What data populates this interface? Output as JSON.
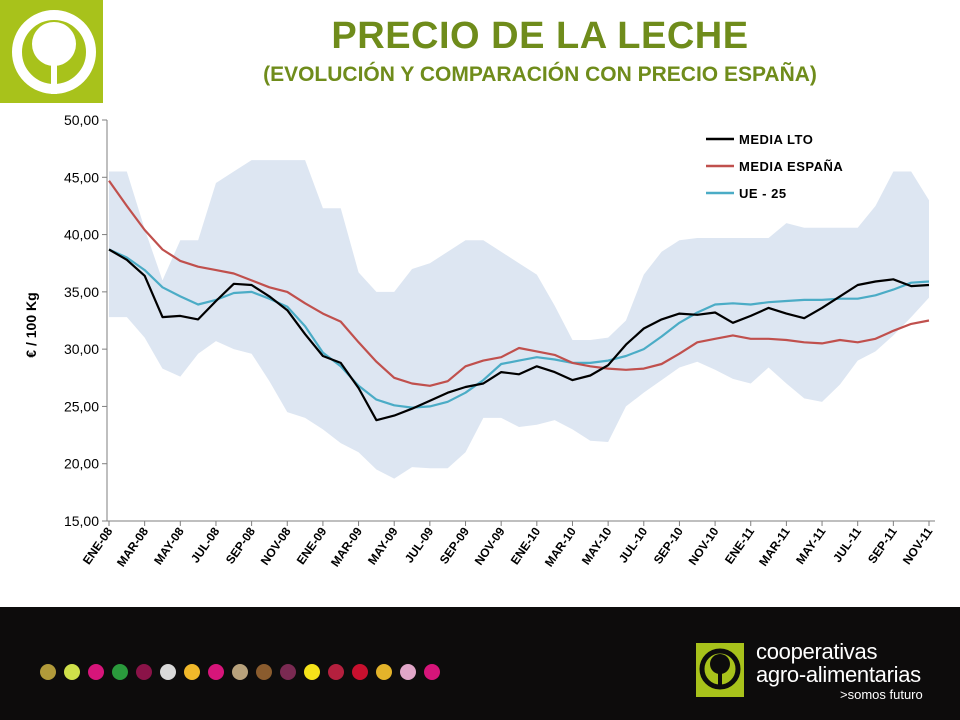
{
  "header": {
    "title": "PRECIO DE LA LECHE",
    "subtitle": "(EVOLUCIÓN Y COMPARACIÓN CON PRECIO ESPAÑA)"
  },
  "colors": {
    "accent": "#a8c21b",
    "title": "#6f8c1b",
    "band": "#dde6f2",
    "media_lto": "#000000",
    "media_espana": "#c0504d",
    "ue25": "#4bacc6",
    "footer": "#0d0c0c"
  },
  "footer": {
    "brand_line1": "cooperativas",
    "brand_line2": "agro-alimentarias",
    "brand_tagline": ">somos futuro",
    "dot_colors": [
      "#b19a3a",
      "#cfe04a",
      "#d6157a",
      "#2a9a3c",
      "#8a1348",
      "#d9d9d9",
      "#f0b82a",
      "#d6157a",
      "#b8a27c",
      "#8a5c2e",
      "#7a2a52",
      "#f5e31a",
      "#b4203e",
      "#c8102e",
      "#e3b32a",
      "#e0a6c8",
      "#d6157a"
    ]
  },
  "chart_data": {
    "type": "line",
    "ylabel": "€ / 100 Kg",
    "xlabel": "",
    "ylim": [
      15,
      50
    ],
    "yticks": [
      "15,00",
      "20,00",
      "25,00",
      "30,00",
      "35,00",
      "40,00",
      "45,00",
      "50,00"
    ],
    "grid": false,
    "legend_position": "top-right",
    "x": [
      "ENE-08",
      "FEB-08",
      "MAR-08",
      "ABR-08",
      "MAY-08",
      "JUN-08",
      "JUL-08",
      "AGO-08",
      "SEP-08",
      "OCT-08",
      "NOV-08",
      "DIC-08",
      "ENE-09",
      "FEB-09",
      "MAR-09",
      "ABR-09",
      "MAY-09",
      "JUN-09",
      "JUL-09",
      "AGO-09",
      "SEP-09",
      "OCT-09",
      "NOV-09",
      "DIC-09",
      "ENE-10",
      "FEB-10",
      "MAR-10",
      "ABR-10",
      "MAY-10",
      "JUN-10",
      "JUL-10",
      "AGO-10",
      "SEP-10",
      "OCT-10",
      "NOV-10",
      "DIC-10",
      "ENE-11",
      "FEB-11",
      "MAR-11",
      "ABR-11",
      "MAY-11",
      "JUN-11",
      "JUL-11",
      "AGO-11",
      "SEP-11",
      "OCT-11",
      "NOV-11"
    ],
    "x_tick_labels": [
      "ENE-08",
      "MAR-08",
      "MAY-08",
      "JUL-08",
      "SEP-08",
      "NOV-08",
      "ENE-09",
      "MAR-09",
      "MAY-09",
      "JUL-09",
      "SEP-09",
      "NOV-09",
      "ENE-10",
      "MAR-10",
      "MAY-10",
      "JUL-10",
      "SEP-10",
      "NOV-10",
      "ENE-11",
      "MAR-11",
      "MAY-11",
      "JUL-11",
      "SEP-11",
      "NOV-11"
    ],
    "band": {
      "upper": [
        45.5,
        45.5,
        40.5,
        36.0,
        39.5,
        39.5,
        44.5,
        45.5,
        46.5,
        46.5,
        46.5,
        46.5,
        42.3,
        42.3,
        36.7,
        35.0,
        35.0,
        37.0,
        37.5,
        38.5,
        39.5,
        39.5,
        38.5,
        37.5,
        36.5,
        33.8,
        30.8,
        30.8,
        31.0,
        32.5,
        36.5,
        38.5,
        39.5,
        39.7,
        39.7,
        39.7,
        39.7,
        39.7,
        41.0,
        40.6,
        40.6,
        40.6,
        40.6,
        42.5,
        45.5,
        45.5,
        43.0
      ],
      "lower": [
        32.8,
        32.8,
        31.0,
        28.3,
        27.6,
        29.6,
        30.7,
        30.0,
        29.6,
        27.2,
        24.5,
        24.0,
        23.0,
        21.8,
        21.0,
        19.5,
        18.7,
        19.7,
        19.6,
        19.6,
        21.0,
        24.0,
        24.0,
        23.2,
        23.4,
        23.8,
        23.0,
        22.0,
        21.9,
        25.0,
        26.2,
        27.3,
        28.4,
        28.9,
        28.2,
        27.4,
        27.0,
        28.4,
        27.0,
        25.7,
        25.4,
        26.9,
        29.0,
        29.8,
        31.2,
        32.8,
        34.5
      ]
    },
    "series": [
      {
        "name": "MEDIA LTO",
        "values": [
          38.7,
          37.8,
          36.4,
          32.8,
          32.9,
          32.6,
          34.2,
          35.7,
          35.6,
          34.6,
          33.4,
          31.3,
          29.4,
          28.8,
          26.6,
          23.8,
          24.2,
          24.8,
          25.5,
          26.2,
          26.7,
          27.0,
          28.0,
          27.8,
          28.5,
          28.0,
          27.3,
          27.7,
          28.6,
          30.4,
          31.8,
          32.6,
          33.1,
          33.0,
          33.2,
          32.3,
          32.9,
          33.6,
          33.1,
          32.7,
          33.6,
          34.6,
          35.6,
          35.9,
          36.1,
          35.5,
          35.6
        ]
      },
      {
        "name": "MEDIA ESPAÑA",
        "values": [
          44.7,
          42.5,
          40.4,
          38.7,
          37.7,
          37.2,
          36.9,
          36.6,
          36.0,
          35.4,
          35.0,
          34.0,
          33.1,
          32.4,
          30.6,
          28.9,
          27.5,
          27.0,
          26.8,
          27.2,
          28.5,
          29.0,
          29.3,
          30.1,
          29.8,
          29.5,
          28.8,
          28.5,
          28.3,
          28.2,
          28.3,
          28.7,
          29.6,
          30.6,
          30.9,
          31.2,
          30.9,
          30.9,
          30.8,
          30.6,
          30.5,
          30.8,
          30.6,
          30.9,
          31.6,
          32.2,
          32.5
        ]
      },
      {
        "name": "UE - 25",
        "values": [
          38.7,
          38.0,
          36.9,
          35.4,
          34.6,
          33.9,
          34.3,
          34.9,
          35.0,
          34.4,
          33.7,
          32.0,
          29.7,
          28.5,
          26.8,
          25.6,
          25.1,
          24.9,
          25.0,
          25.4,
          26.2,
          27.3,
          28.7,
          29.0,
          29.3,
          29.1,
          28.8,
          28.8,
          29.0,
          29.4,
          30.0,
          31.1,
          32.3,
          33.2,
          33.9,
          34.0,
          33.9,
          34.1,
          34.2,
          34.3,
          34.3,
          34.4,
          34.4,
          34.7,
          35.2,
          35.8,
          35.9
        ]
      }
    ]
  }
}
